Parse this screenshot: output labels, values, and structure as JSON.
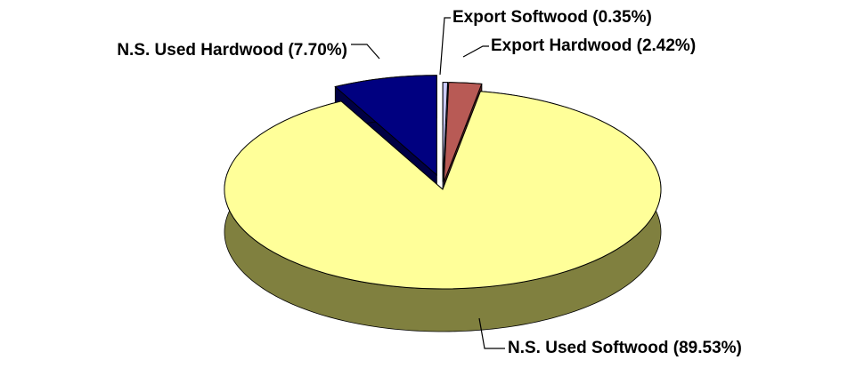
{
  "chart_data": {
    "type": "pie",
    "labels": [
      "Export Softwood (0.35%)",
      "Export Hardwood (2.42%)",
      "N.S. Used Softwood (89.53%)",
      "N.S. Used Hardwood (7.70%)"
    ],
    "values": [
      0.35,
      2.42,
      89.53,
      7.7
    ],
    "colors": [
      "#ccccff",
      "#b85a55",
      "#ffff99",
      "#000080"
    ],
    "side_colors": [
      "#7777aa",
      "#5a2424",
      "#80803f",
      "#000044"
    ]
  }
}
